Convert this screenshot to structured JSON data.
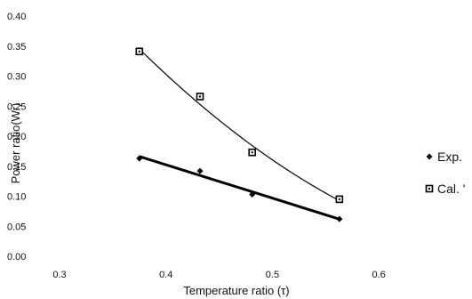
{
  "chart_data": {
    "type": "scatter",
    "title": "",
    "xlabel": "Temperature ratio (τ)",
    "ylabel": "Power ratio(Wr)",
    "xlim": [
      0.3,
      0.65
    ],
    "ylim": [
      0.0,
      0.4
    ],
    "x_ticks": [
      "0.3",
      "0.4",
      "0.5",
      "0.6"
    ],
    "y_ticks": [
      "0.00",
      "0.05",
      "0.10",
      "0.15",
      "0.20",
      "0.25",
      "0.30",
      "0.35",
      "0.40"
    ],
    "grid": false,
    "legend_position": "right",
    "series": [
      {
        "name": "Exp.",
        "marker": "diamond",
        "color": "#000000",
        "x": [
          0.375,
          0.432,
          0.481,
          0.563
        ],
        "y": [
          0.163,
          0.142,
          0.103,
          0.062
        ],
        "trend": "linear"
      },
      {
        "name": "Cal. '",
        "marker": "square-open",
        "color": "#000000",
        "x": [
          0.375,
          0.432,
          0.481,
          0.563
        ],
        "y": [
          0.341,
          0.266,
          0.173,
          0.095
        ],
        "trend": "curve"
      }
    ]
  }
}
